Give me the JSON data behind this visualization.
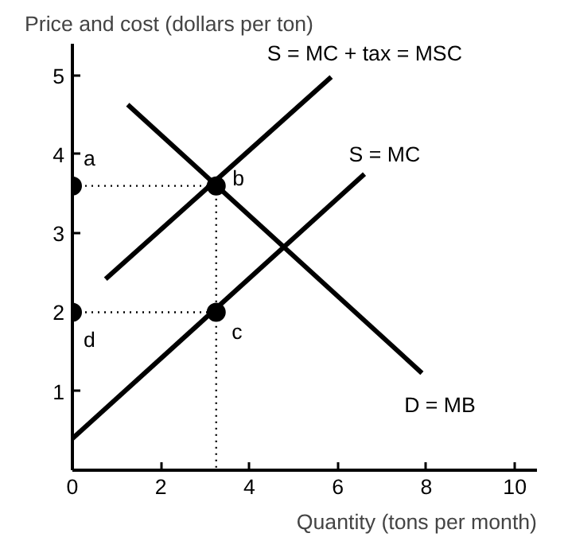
{
  "chart_data": {
    "type": "line",
    "ylabel": "Price and cost (dollars per ton)",
    "xlabel": "Quantity (tons per month)",
    "xlim": [
      0,
      10.5
    ],
    "ylim": [
      0,
      5.4
    ],
    "xticks": [
      0,
      2,
      4,
      6,
      8,
      10
    ],
    "yticks": [
      1,
      2,
      3,
      4,
      5
    ],
    "grid": false,
    "series": [
      {
        "color": "#000000",
        "x": [
          0,
          6.6
        ],
        "values": [
          0.4,
          3.75
        ]
      },
      {
        "color": "#000000",
        "x": [
          0.75,
          5.85
        ],
        "values": [
          2.42,
          4.98
        ]
      },
      {
        "color": "#000000",
        "x": [
          1.25,
          7.9
        ],
        "values": [
          4.63,
          1.23
        ]
      },
      {
        "color": "#000000",
        "line_style": "dotted",
        "x": [
          0,
          3.25
        ],
        "values": [
          3.6,
          3.6
        ]
      },
      {
        "color": "#000000",
        "line_style": "dotted",
        "x": [
          0,
          3.25
        ],
        "values": [
          2,
          2
        ]
      },
      {
        "color": "#000000",
        "line_style": "dotted",
        "x": [
          3.25,
          3.25
        ],
        "values": [
          3.6,
          0
        ]
      },
      {
        "type": "scatter",
        "color": "#000000",
        "marker": "circle",
        "x": [
          0,
          3.25,
          3.25,
          0
        ],
        "values": [
          3.6,
          3.6,
          2,
          2
        ]
      }
    ],
    "annotations": [
      "S = MC + tax = MSC",
      "S = MC",
      "D = MB",
      "a",
      "b",
      "c",
      "d"
    ]
  }
}
